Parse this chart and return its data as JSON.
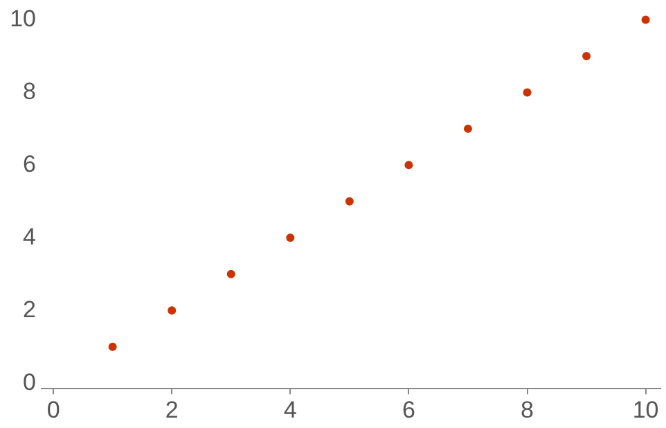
{
  "chart_data": {
    "type": "scatter",
    "x": [
      1,
      2,
      3,
      4,
      5,
      6,
      7,
      8,
      9,
      10
    ],
    "values": [
      1,
      2,
      3,
      4,
      5,
      6,
      7,
      8,
      9,
      10
    ],
    "color": "#cc3300",
    "marker": "circle",
    "xlim": [
      -0.2,
      10.25
    ],
    "ylim": [
      -0.15,
      10
    ],
    "xticks": [
      0,
      2,
      4,
      6,
      8,
      10
    ],
    "yticks": [
      0,
      2,
      4,
      6,
      8,
      10
    ]
  }
}
